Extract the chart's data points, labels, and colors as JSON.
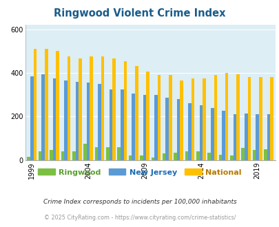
{
  "title": "Ringwood Violent Crime Index",
  "years": [
    1999,
    2000,
    2001,
    2002,
    2003,
    2004,
    2005,
    2006,
    2007,
    2008,
    2009,
    2010,
    2011,
    2012,
    2013,
    2014,
    2015,
    2016,
    2017,
    2018,
    2019,
    2020
  ],
  "ringwood": [
    15,
    40,
    45,
    40,
    40,
    75,
    60,
    60,
    60,
    20,
    20,
    10,
    30,
    35,
    40,
    40,
    35,
    25,
    20,
    55,
    45,
    50
  ],
  "new_jersey": [
    385,
    395,
    375,
    365,
    360,
    355,
    350,
    325,
    325,
    305,
    300,
    300,
    285,
    280,
    260,
    250,
    240,
    225,
    210,
    215,
    210,
    210
  ],
  "national": [
    510,
    510,
    500,
    475,
    465,
    475,
    475,
    465,
    455,
    430,
    405,
    390,
    390,
    365,
    375,
    375,
    390,
    400,
    395,
    380,
    380,
    380
  ],
  "color_ringwood": "#7bc043",
  "color_nj": "#5b9bd5",
  "color_national": "#ffc000",
  "bg_color": "#ddeef5",
  "ylim": [
    0,
    620
  ],
  "yticks": [
    0,
    200,
    400,
    600
  ],
  "footnote1": "Crime Index corresponds to incidents per 100,000 inhabitants",
  "footnote2": "© 2025 CityRating.com - https://www.cityrating.com/crime-statistics/",
  "legend_labels": [
    "Ringwood",
    "New Jersey",
    "National"
  ],
  "legend_label_colors": [
    "#5a9e2f",
    "#1a6bb5",
    "#b87a00"
  ]
}
